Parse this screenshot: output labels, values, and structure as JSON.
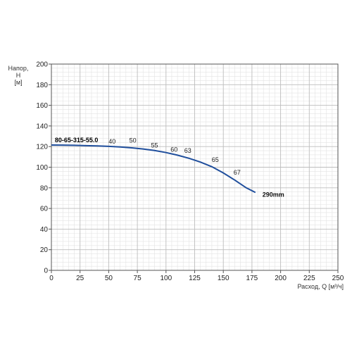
{
  "chart_data": {
    "type": "line",
    "title": "",
    "ylabel_lines": [
      "Напор,",
      "H",
      "[м]"
    ],
    "xlabel": "Расход, Q [м³/ч]",
    "xlim": [
      0,
      250
    ],
    "ylim": [
      0,
      200
    ],
    "x_ticks": [
      "0",
      "25",
      "50",
      "75",
      "100",
      "125",
      "150",
      "175",
      "200",
      "225",
      "250"
    ],
    "y_ticks": [
      "0",
      "20",
      "40",
      "60",
      "80",
      "100",
      "120",
      "140",
      "160",
      "180",
      "200"
    ],
    "grid": true,
    "model_label": "80-65-315-55.0",
    "series": [
      {
        "name": "290mm",
        "color": "#1f4e9c",
        "x": [
          0,
          10,
          20,
          30,
          40,
          50,
          60,
          70,
          80,
          90,
          100,
          110,
          120,
          130,
          140,
          150,
          160,
          170,
          178
        ],
        "y": [
          121.5,
          121.4,
          121.2,
          120.9,
          120.6,
          120.2,
          119.6,
          118.8,
          117.7,
          116.2,
          114.2,
          111.7,
          108.7,
          105.0,
          100.5,
          94.5,
          87.5,
          80.0,
          75.5
        ]
      }
    ],
    "efficiency_labels": [
      {
        "text": "40",
        "x": 53,
        "y": 123
      },
      {
        "text": "50",
        "x": 71,
        "y": 124
      },
      {
        "text": "55",
        "x": 90,
        "y": 119
      },
      {
        "text": "60",
        "x": 107,
        "y": 115
      },
      {
        "text": "63",
        "x": 119,
        "y": 114
      },
      {
        "text": "65",
        "x": 143,
        "y": 105
      },
      {
        "text": "67",
        "x": 162,
        "y": 93
      }
    ]
  }
}
